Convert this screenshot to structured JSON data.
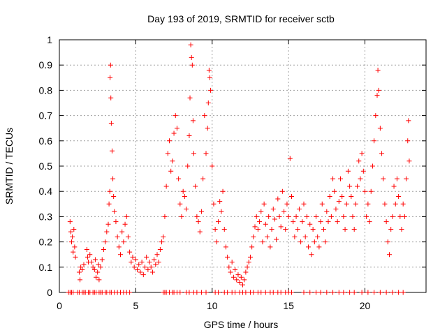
{
  "chart_data": {
    "type": "scatter",
    "title": "Day 193 of 2019, SRMTID for receiver sctb",
    "xlabel": "GPS time / hours",
    "ylabel": "SRMTID / TECUs",
    "xlim": [
      0,
      24
    ],
    "ylim": [
      0,
      1
    ],
    "xticks": [
      0,
      5,
      10,
      15,
      20
    ],
    "xtick_labels": [
      "0",
      "5",
      "10",
      "15",
      "20"
    ],
    "yticks": [
      0,
      0.1,
      0.2,
      0.3,
      0.4,
      0.5,
      0.6,
      0.7,
      0.8,
      0.9,
      1
    ],
    "ytick_labels": [
      "0",
      "0.1",
      "0.2",
      "0.3",
      "0.4",
      "0.5",
      "0.6",
      "0.7",
      "0.8",
      "0.9",
      "1"
    ],
    "grid": true,
    "marker": "+",
    "color": "#ff0000",
    "series": [
      {
        "name": "SRMTID",
        "points": [
          [
            0.7,
            0.28
          ],
          [
            0.75,
            0.24
          ],
          [
            0.8,
            0.2
          ],
          [
            0.85,
            0.22
          ],
          [
            0.9,
            0.16
          ],
          [
            0.95,
            0.25
          ],
          [
            1.0,
            0.18
          ],
          [
            1.05,
            0.14
          ],
          [
            1.3,
            0.08
          ],
          [
            1.35,
            0.05
          ],
          [
            1.4,
            0.1
          ],
          [
            1.5,
            0.09
          ],
          [
            1.6,
            0.11
          ],
          [
            1.8,
            0.17
          ],
          [
            1.85,
            0.14
          ],
          [
            1.9,
            0.12
          ],
          [
            2.0,
            0.15
          ],
          [
            2.1,
            0.12
          ],
          [
            2.2,
            0.1
          ],
          [
            2.3,
            0.09
          ],
          [
            2.35,
            0.13
          ],
          [
            2.4,
            0.06
          ],
          [
            2.5,
            0.08
          ],
          [
            2.55,
            0.11
          ],
          [
            2.6,
            0.05
          ],
          [
            2.7,
            0.1
          ],
          [
            2.8,
            0.13
          ],
          [
            2.9,
            0.17
          ],
          [
            3.0,
            0.2
          ],
          [
            3.1,
            0.24
          ],
          [
            3.2,
            0.27
          ],
          [
            3.25,
            0.35
          ],
          [
            3.3,
            0.4
          ],
          [
            3.32,
            0.85
          ],
          [
            3.35,
            0.9
          ],
          [
            3.37,
            0.77
          ],
          [
            3.4,
            0.67
          ],
          [
            3.45,
            0.56
          ],
          [
            3.5,
            0.45
          ],
          [
            3.55,
            0.38
          ],
          [
            3.6,
            0.32
          ],
          [
            3.7,
            0.28
          ],
          [
            3.8,
            0.22
          ],
          [
            3.9,
            0.18
          ],
          [
            4.0,
            0.15
          ],
          [
            4.1,
            0.24
          ],
          [
            4.2,
            0.2
          ],
          [
            4.3,
            0.27
          ],
          [
            4.4,
            0.3
          ],
          [
            4.5,
            0.22
          ],
          [
            4.6,
            0.16
          ],
          [
            4.7,
            0.12
          ],
          [
            4.8,
            0.14
          ],
          [
            4.9,
            0.1
          ],
          [
            5.0,
            0.13
          ],
          [
            5.1,
            0.09
          ],
          [
            5.2,
            0.11
          ],
          [
            5.3,
            0.08
          ],
          [
            5.4,
            0.12
          ],
          [
            5.5,
            0.07
          ],
          [
            5.6,
            0.1
          ],
          [
            5.7,
            0.14
          ],
          [
            5.8,
            0.09
          ],
          [
            5.9,
            0.12
          ],
          [
            6.0,
            0.1
          ],
          [
            6.1,
            0.08
          ],
          [
            6.2,
            0.13
          ],
          [
            6.3,
            0.11
          ],
          [
            6.4,
            0.15
          ],
          [
            6.5,
            0.12
          ],
          [
            6.6,
            0.17
          ],
          [
            6.7,
            0.2
          ],
          [
            6.8,
            0.22
          ],
          [
            6.9,
            0.3
          ],
          [
            7.0,
            0.42
          ],
          [
            7.1,
            0.55
          ],
          [
            7.2,
            0.6
          ],
          [
            7.3,
            0.48
          ],
          [
            7.4,
            0.52
          ],
          [
            7.5,
            0.63
          ],
          [
            7.6,
            0.7
          ],
          [
            7.7,
            0.65
          ],
          [
            7.8,
            0.45
          ],
          [
            7.9,
            0.35
          ],
          [
            8.0,
            0.3
          ],
          [
            8.1,
            0.4
          ],
          [
            8.2,
            0.38
          ],
          [
            8.3,
            0.33
          ],
          [
            8.4,
            0.5
          ],
          [
            8.5,
            0.62
          ],
          [
            8.55,
            0.77
          ],
          [
            8.6,
            0.98
          ],
          [
            8.65,
            0.93
          ],
          [
            8.7,
            0.9
          ],
          [
            8.75,
            0.68
          ],
          [
            8.8,
            0.55
          ],
          [
            8.9,
            0.42
          ],
          [
            9.0,
            0.3
          ],
          [
            9.1,
            0.28
          ],
          [
            9.2,
            0.24
          ],
          [
            9.3,
            0.32
          ],
          [
            9.4,
            0.45
          ],
          [
            9.5,
            0.7
          ],
          [
            9.6,
            0.55
          ],
          [
            9.7,
            0.65
          ],
          [
            9.75,
            0.75
          ],
          [
            9.8,
            0.88
          ],
          [
            9.85,
            0.85
          ],
          [
            9.9,
            0.8
          ],
          [
            10.0,
            0.5
          ],
          [
            10.1,
            0.35
          ],
          [
            10.2,
            0.25
          ],
          [
            10.3,
            0.2
          ],
          [
            10.4,
            0.28
          ],
          [
            10.5,
            0.36
          ],
          [
            10.6,
            0.32
          ],
          [
            10.7,
            0.4
          ],
          [
            10.8,
            0.25
          ],
          [
            10.9,
            0.18
          ],
          [
            11.0,
            0.14
          ],
          [
            11.1,
            0.1
          ],
          [
            11.2,
            0.08
          ],
          [
            11.3,
            0.12
          ],
          [
            11.4,
            0.06
          ],
          [
            11.5,
            0.09
          ],
          [
            11.6,
            0.05
          ],
          [
            11.7,
            0.07
          ],
          [
            11.8,
            0.04
          ],
          [
            11.9,
            0.06
          ],
          [
            12.0,
            0.03
          ],
          [
            12.1,
            0.05
          ],
          [
            12.2,
            0.08
          ],
          [
            12.3,
            0.1
          ],
          [
            12.4,
            0.12
          ],
          [
            12.5,
            0.14
          ],
          [
            12.6,
            0.18
          ],
          [
            12.7,
            0.22
          ],
          [
            12.8,
            0.26
          ],
          [
            12.9,
            0.3
          ],
          [
            13.0,
            0.25
          ],
          [
            13.1,
            0.28
          ],
          [
            13.2,
            0.32
          ],
          [
            13.3,
            0.2
          ],
          [
            13.4,
            0.35
          ],
          [
            13.5,
            0.27
          ],
          [
            13.6,
            0.22
          ],
          [
            13.7,
            0.3
          ],
          [
            13.8,
            0.18
          ],
          [
            13.9,
            0.25
          ],
          [
            14.0,
            0.33
          ],
          [
            14.1,
            0.29
          ],
          [
            14.2,
            0.21
          ],
          [
            14.3,
            0.37
          ],
          [
            14.4,
            0.3
          ],
          [
            14.5,
            0.26
          ],
          [
            14.6,
            0.4
          ],
          [
            14.7,
            0.32
          ],
          [
            14.8,
            0.25
          ],
          [
            14.9,
            0.35
          ],
          [
            15.0,
            0.3
          ],
          [
            15.1,
            0.53
          ],
          [
            15.2,
            0.38
          ],
          [
            15.3,
            0.28
          ],
          [
            15.4,
            0.22
          ],
          [
            15.5,
            0.3
          ],
          [
            15.6,
            0.25
          ],
          [
            15.7,
            0.33
          ],
          [
            15.8,
            0.2
          ],
          [
            15.9,
            0.28
          ],
          [
            16.0,
            0.35
          ],
          [
            16.1,
            0.22
          ],
          [
            16.2,
            0.3
          ],
          [
            16.3,
            0.18
          ],
          [
            16.4,
            0.27
          ],
          [
            16.5,
            0.15
          ],
          [
            16.6,
            0.25
          ],
          [
            16.7,
            0.2
          ],
          [
            16.8,
            0.3
          ],
          [
            16.9,
            0.22
          ],
          [
            17.0,
            0.18
          ],
          [
            17.1,
            0.28
          ],
          [
            17.2,
            0.35
          ],
          [
            17.3,
            0.25
          ],
          [
            17.4,
            0.2
          ],
          [
            17.5,
            0.32
          ],
          [
            17.6,
            0.28
          ],
          [
            17.7,
            0.38
          ],
          [
            17.8,
            0.3
          ],
          [
            17.9,
            0.45
          ],
          [
            18.0,
            0.4
          ],
          [
            18.1,
            0.33
          ],
          [
            18.2,
            0.28
          ],
          [
            18.3,
            0.36
          ],
          [
            18.4,
            0.45
          ],
          [
            18.5,
            0.38
          ],
          [
            18.6,
            0.3
          ],
          [
            18.7,
            0.25
          ],
          [
            18.8,
            0.35
          ],
          [
            18.9,
            0.48
          ],
          [
            19.0,
            0.42
          ],
          [
            19.1,
            0.38
          ],
          [
            19.2,
            0.3
          ],
          [
            19.3,
            0.25
          ],
          [
            19.4,
            0.35
          ],
          [
            19.5,
            0.42
          ],
          [
            19.6,
            0.52
          ],
          [
            19.7,
            0.45
          ],
          [
            19.8,
            0.55
          ],
          [
            19.9,
            0.48
          ],
          [
            20.0,
            0.4
          ],
          [
            20.1,
            0.3
          ],
          [
            20.2,
            0.35
          ],
          [
            20.3,
            0.28
          ],
          [
            20.4,
            0.4
          ],
          [
            20.5,
            0.5
          ],
          [
            20.6,
            0.6
          ],
          [
            20.7,
            0.7
          ],
          [
            20.8,
            0.78
          ],
          [
            20.85,
            0.88
          ],
          [
            20.9,
            0.8
          ],
          [
            21.0,
            0.65
          ],
          [
            21.1,
            0.55
          ],
          [
            21.2,
            0.45
          ],
          [
            21.3,
            0.35
          ],
          [
            21.4,
            0.28
          ],
          [
            21.5,
            0.2
          ],
          [
            21.6,
            0.15
          ],
          [
            21.7,
            0.25
          ],
          [
            21.8,
            0.3
          ],
          [
            21.9,
            0.42
          ],
          [
            22.0,
            0.35
          ],
          [
            22.1,
            0.45
          ],
          [
            22.2,
            0.38
          ],
          [
            22.3,
            0.3
          ],
          [
            22.4,
            0.25
          ],
          [
            22.5,
            0.35
          ],
          [
            22.6,
            0.3
          ],
          [
            22.7,
            0.45
          ],
          [
            22.8,
            0.6
          ],
          [
            22.85,
            0.68
          ],
          [
            22.9,
            0.52
          ]
        ]
      }
    ],
    "zero_points_x": [
      0.6,
      0.7,
      0.8,
      0.9,
      1.2,
      1.3,
      1.5,
      1.6,
      1.7,
      1.9,
      2.0,
      2.2,
      2.3,
      2.4,
      2.6,
      2.7,
      2.8,
      3.0,
      3.1,
      3.3,
      3.4,
      3.6,
      3.8,
      4.0,
      4.2,
      4.4,
      4.6,
      6.8,
      6.9,
      7.0,
      7.2,
      7.4,
      7.5,
      7.7,
      7.9,
      8.3,
      8.5,
      8.8,
      9.0,
      9.3,
      9.6,
      10.2,
      10.4,
      10.8,
      11.0,
      11.3,
      11.5,
      11.8,
      12.0,
      12.2,
      12.5,
      12.7,
      13.0,
      13.2,
      13.5,
      13.8,
      14.0,
      14.3,
      14.5,
      14.8,
      15.0,
      15.2,
      16.0,
      16.4,
      16.8,
      17.1,
      17.5,
      17.9,
      18.3,
      18.6,
      19.0,
      19.3,
      19.8,
      20.2,
      20.6,
      21.0,
      21.4,
      21.8,
      22.2,
      22.5
    ]
  }
}
